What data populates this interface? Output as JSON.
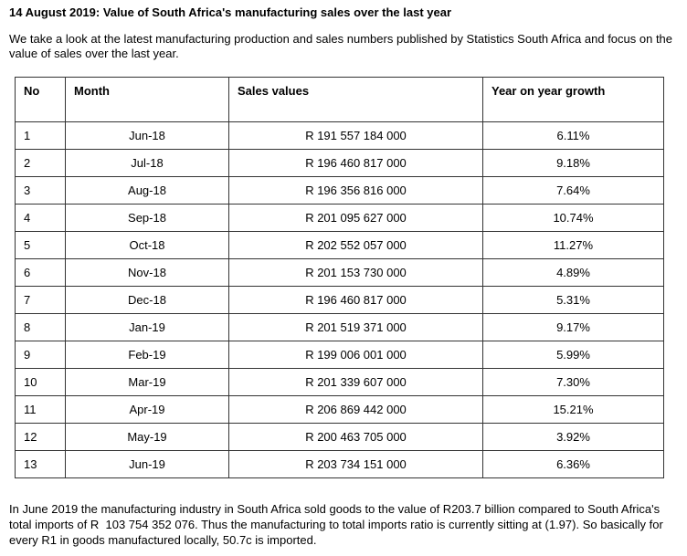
{
  "page": {
    "title": "14 August 2019: Value of South Africa's manufacturing sales over the last year",
    "intro": "We take a look at the latest manufacturing production and sales numbers published by Statistics South Africa and focus on the value of sales over the last year.",
    "closing": "In June 2019 the manufacturing industry in South Africa sold goods to the value of R203.7 billion compared to South Africa's total imports of R  103 754 352 076. Thus the manufacturing to total imports ratio is currently sitting at (1.97). So basically for every R1 in goods manufactured locally, 50.7c is imported."
  },
  "table": {
    "headers": [
      "No",
      "Month",
      "Sales values",
      "Year on year growth"
    ],
    "rows": [
      [
        "1",
        "Jun-18",
        "R 191 557 184 000",
        "6.11%"
      ],
      [
        "2",
        "Jul-18",
        "R 196 460 817 000",
        "9.18%"
      ],
      [
        "3",
        "Aug-18",
        "R 196 356 816 000",
        "7.64%"
      ],
      [
        "4",
        "Sep-18",
        "R 201 095 627 000",
        "10.74%"
      ],
      [
        "5",
        "Oct-18",
        "R 202 552 057 000",
        "11.27%"
      ],
      [
        "6",
        "Nov-18",
        "R 201 153 730 000",
        "4.89%"
      ],
      [
        "7",
        "Dec-18",
        "R 196 460 817 000",
        "5.31%"
      ],
      [
        "8",
        "Jan-19",
        "R 201 519 371 000",
        "9.17%"
      ],
      [
        "9",
        "Feb-19",
        "R 199 006 001 000",
        "5.99%"
      ],
      [
        "10",
        "Mar-19",
        "R 201 339 607 000",
        "7.30%"
      ],
      [
        "11",
        "Apr-19",
        "R 206 869 442 000",
        "15.21%"
      ],
      [
        "12",
        "May-19",
        "R 200 463 705 000",
        "3.92%"
      ],
      [
        "13",
        "Jun-19",
        "R 203 734 151 000",
        "6.36%"
      ]
    ]
  }
}
